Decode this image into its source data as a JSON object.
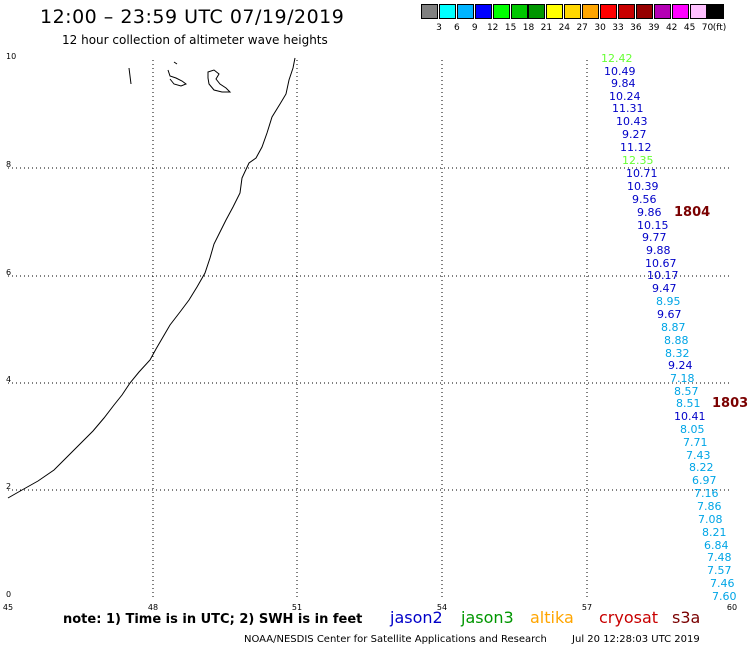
{
  "header": {
    "title": "12:00 – 23:59 UTC 07/19/2019",
    "subtitle": "12 hour collection of altimeter wave heights"
  },
  "colorbar": {
    "unit_label": "(ft)",
    "swatches": [
      {
        "color": "#808080",
        "label": "3"
      },
      {
        "color": "#00ffff",
        "label": "6"
      },
      {
        "color": "#00b4ff",
        "label": "9"
      },
      {
        "color": "#0000ff",
        "label": "12"
      },
      {
        "color": "#00ff00",
        "label": "15"
      },
      {
        "color": "#00c800",
        "label": "18"
      },
      {
        "color": "#009600",
        "label": "21"
      },
      {
        "color": "#ffff00",
        "label": "24"
      },
      {
        "color": "#ffd700",
        "label": "27"
      },
      {
        "color": "#ffa500",
        "label": "30"
      },
      {
        "color": "#ff0000",
        "label": "33"
      },
      {
        "color": "#c80000",
        "label": "36"
      },
      {
        "color": "#960000",
        "label": "39"
      },
      {
        "color": "#b400b4",
        "label": "42"
      },
      {
        "color": "#ff00ff",
        "label": "45"
      },
      {
        "color": "#ffc0ff",
        "label": "70"
      },
      {
        "color": "#000000",
        "label": ""
      }
    ]
  },
  "axes": {
    "x_ticks": [
      "45",
      "48",
      "51",
      "54",
      "57",
      "60"
    ],
    "y_ticks": [
      "0",
      "2",
      "4",
      "6",
      "8",
      "10"
    ]
  },
  "colors": {
    "jason2": "#0000c8",
    "jason3": "#009600",
    "altika": "#ffa500",
    "cryosat": "#c80000",
    "s3a": "#7a0000",
    "light_green": "#66ff33",
    "light_blue": "#00a5e6"
  },
  "map": {
    "coastline": "coast-line",
    "wave_heights": [
      {
        "value": "12.42",
        "color": "#66ff33"
      },
      {
        "value": "10.49",
        "color": "#0000c8"
      },
      {
        "value": "9.84",
        "color": "#0000c8"
      },
      {
        "value": "10.24",
        "color": "#0000c8"
      },
      {
        "value": "11.31",
        "color": "#0000c8"
      },
      {
        "value": "10.43",
        "color": "#0000c8"
      },
      {
        "value": "9.27",
        "color": "#0000c8"
      },
      {
        "value": "11.12",
        "color": "#0000c8"
      },
      {
        "value": "12.35",
        "color": "#66ff33"
      },
      {
        "value": "10.71",
        "color": "#0000c8"
      },
      {
        "value": "10.39",
        "color": "#0000c8"
      },
      {
        "value": "9.56",
        "color": "#0000c8"
      },
      {
        "value": "9.86",
        "color": "#0000c8"
      },
      {
        "value": "10.15",
        "color": "#0000c8"
      },
      {
        "value": "9.77",
        "color": "#0000c8"
      },
      {
        "value": "9.88",
        "color": "#0000c8"
      },
      {
        "value": "10.67",
        "color": "#0000c8"
      },
      {
        "value": "10.17",
        "color": "#0000c8"
      },
      {
        "value": "9.47",
        "color": "#0000c8"
      },
      {
        "value": "8.95",
        "color": "#00a5e6"
      },
      {
        "value": "9.67",
        "color": "#0000c8"
      },
      {
        "value": "8.87",
        "color": "#00a5e6"
      },
      {
        "value": "8.88",
        "color": "#00a5e6"
      },
      {
        "value": "8.32",
        "color": "#00a5e6"
      },
      {
        "value": "9.24",
        "color": "#0000c8"
      },
      {
        "value": "7.18",
        "color": "#00a5e6"
      },
      {
        "value": "8.57",
        "color": "#00a5e6"
      },
      {
        "value": "8.51",
        "color": "#00a5e6"
      },
      {
        "value": "10.41",
        "color": "#0000c8"
      },
      {
        "value": "8.05",
        "color": "#00a5e6"
      },
      {
        "value": "7.71",
        "color": "#00a5e6"
      },
      {
        "value": "7.43",
        "color": "#00a5e6"
      },
      {
        "value": "8.22",
        "color": "#00a5e6"
      },
      {
        "value": "6.97",
        "color": "#00a5e6"
      },
      {
        "value": "7.16",
        "color": "#00a5e6"
      },
      {
        "value": "7.86",
        "color": "#00a5e6"
      },
      {
        "value": "7.08",
        "color": "#00a5e6"
      },
      {
        "value": "8.21",
        "color": "#00a5e6"
      },
      {
        "value": "6.84",
        "color": "#00a5e6"
      },
      {
        "value": "7.48",
        "color": "#00a5e6"
      },
      {
        "value": "7.57",
        "color": "#00a5e6"
      },
      {
        "value": "7.46",
        "color": "#00a5e6"
      },
      {
        "value": "7.60",
        "color": "#00a5e6"
      }
    ],
    "track_labels": [
      "1804",
      "1803"
    ]
  },
  "footer": {
    "note": "note: 1) Time is in UTC; 2) SWH is in feet",
    "legend": [
      {
        "name": "jason2",
        "color": "#0000c8"
      },
      {
        "name": "jason3",
        "color": "#009600"
      },
      {
        "name": "altika",
        "color": "#ffa500"
      },
      {
        "name": "cryosat",
        "color": "#c80000"
      },
      {
        "name": "s3a",
        "color": "#7a0000"
      }
    ],
    "credit": "NOAA/NESDIS Center for Satellite Applications and Research",
    "timestamp": "Jul 20 12:28:03 UTC 2019"
  }
}
